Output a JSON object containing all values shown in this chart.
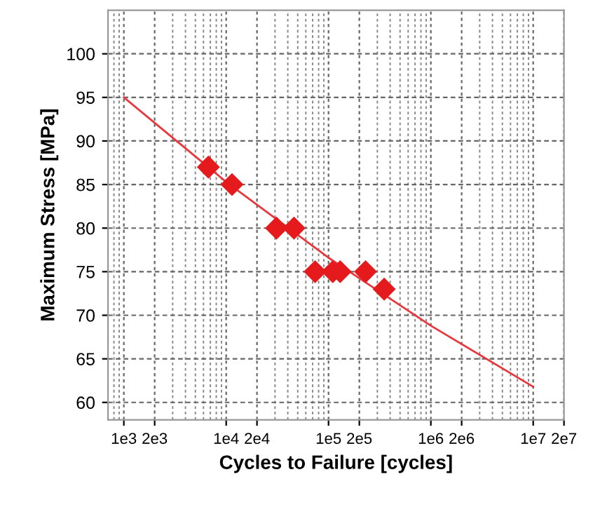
{
  "chart_data": {
    "type": "scatter",
    "xlabel": "Cycles to Failure [cycles]",
    "ylabel": "Maximum Stress [MPa]",
    "log": "x",
    "xlim": [
      700,
      20000000
    ],
    "xticks": [
      {
        "value": 1000,
        "label": "1e3"
      },
      {
        "value": 2000,
        "label": "2e3"
      },
      {
        "value": 10000,
        "label": "1e4"
      },
      {
        "value": 20000,
        "label": "2e4"
      },
      {
        "value": 100000,
        "label": "1e5"
      },
      {
        "value": 200000,
        "label": "2e5"
      },
      {
        "value": 1000000,
        "label": "1e6"
      },
      {
        "value": 2000000,
        "label": "2e6"
      },
      {
        "value": 10000000,
        "label": "1e7"
      },
      {
        "value": 20000000,
        "label": "2e7"
      }
    ],
    "ylim": [
      58,
      105
    ],
    "yticks": [
      60,
      65,
      70,
      75,
      80,
      85,
      90,
      95,
      100
    ],
    "grid": true,
    "series": [
      {
        "marker": "diamond",
        "color": "#e41a1c",
        "x": [
          6700,
          11400,
          31000,
          46000,
          74000,
          110000,
          130000,
          230000,
          350000
        ],
        "values": [
          87,
          85,
          80,
          80,
          75,
          75,
          75,
          75,
          73
        ]
      },
      {
        "type": "line",
        "marker": "none",
        "line_style": "solid",
        "color": "#e8383d",
        "x": [
          1000,
          10000,
          100000,
          1000000,
          10000000
        ],
        "values": [
          95,
          85.3,
          76.6,
          68.8,
          61.8
        ]
      }
    ]
  }
}
